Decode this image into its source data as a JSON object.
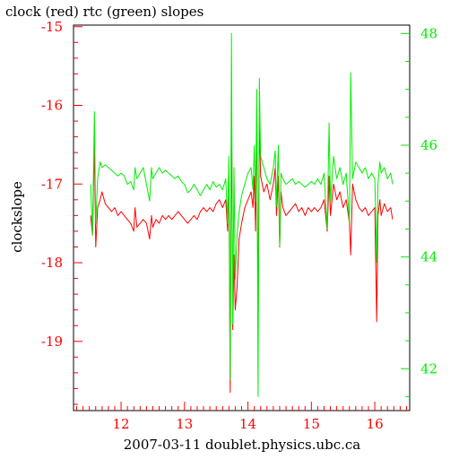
{
  "chart_data": {
    "type": "line",
    "title": "clock (red) rtc (green) slopes",
    "xlabel": "2007-03-11 doublet.physics.ubc.ca",
    "ylabel": "clockslope",
    "xlim": [
      11.25,
      16.55
    ],
    "ylim_left": [
      -19.88,
      -14.98
    ],
    "ylim_right": [
      41.25,
      48.15
    ],
    "grid": false,
    "colors": {
      "clock": "#ff0000",
      "rtc": "#00ee00",
      "axes": "#000000"
    },
    "x_ticks": [
      "12",
      "13",
      "14",
      "15",
      "16"
    ],
    "y_ticks_left": [
      "-15",
      "-16",
      "-17",
      "-18",
      "-19"
    ],
    "y_ticks_right": [
      "48",
      "46",
      "44",
      "42"
    ],
    "series": [
      {
        "name": "clock",
        "axis": "left",
        "color": "#ff0000",
        "points": [
          [
            11.52,
            -17.4
          ],
          [
            11.55,
            -17.65
          ],
          [
            11.58,
            -16.5
          ],
          [
            11.6,
            -17.8
          ],
          [
            11.63,
            -17.3
          ],
          [
            11.67,
            -17.2
          ],
          [
            11.7,
            -17.1
          ],
          [
            11.75,
            -17.25
          ],
          [
            11.8,
            -17.3
          ],
          [
            11.85,
            -17.35
          ],
          [
            11.9,
            -17.3
          ],
          [
            11.95,
            -17.4
          ],
          [
            12.0,
            -17.35
          ],
          [
            12.05,
            -17.4
          ],
          [
            12.1,
            -17.45
          ],
          [
            12.15,
            -17.5
          ],
          [
            12.2,
            -17.6
          ],
          [
            12.22,
            -17.3
          ],
          [
            12.25,
            -17.55
          ],
          [
            12.3,
            -17.5
          ],
          [
            12.35,
            -17.45
          ],
          [
            12.4,
            -17.5
          ],
          [
            12.45,
            -17.7
          ],
          [
            12.48,
            -17.4
          ],
          [
            12.5,
            -17.55
          ],
          [
            12.55,
            -17.45
          ],
          [
            12.6,
            -17.5
          ],
          [
            12.65,
            -17.4
          ],
          [
            12.7,
            -17.45
          ],
          [
            12.75,
            -17.4
          ],
          [
            12.8,
            -17.45
          ],
          [
            12.85,
            -17.4
          ],
          [
            12.9,
            -17.35
          ],
          [
            12.95,
            -17.4
          ],
          [
            13.0,
            -17.45
          ],
          [
            13.05,
            -17.5
          ],
          [
            13.1,
            -17.45
          ],
          [
            13.15,
            -17.4
          ],
          [
            13.2,
            -17.45
          ],
          [
            13.25,
            -17.35
          ],
          [
            13.3,
            -17.3
          ],
          [
            13.35,
            -17.35
          ],
          [
            13.4,
            -17.3
          ],
          [
            13.45,
            -17.35
          ],
          [
            13.5,
            -17.25
          ],
          [
            13.55,
            -17.2
          ],
          [
            13.6,
            -17.3
          ],
          [
            13.65,
            -17.2
          ],
          [
            13.68,
            -17.6
          ],
          [
            13.7,
            -16.9
          ],
          [
            13.72,
            -19.65
          ],
          [
            13.74,
            -15.85
          ],
          [
            13.76,
            -18.85
          ],
          [
            13.78,
            -17.9
          ],
          [
            13.8,
            -18.6
          ],
          [
            13.83,
            -18.3
          ],
          [
            13.86,
            -17.7
          ],
          [
            13.9,
            -17.5
          ],
          [
            13.95,
            -17.3
          ],
          [
            14.0,
            -17.2
          ],
          [
            14.05,
            -17.1
          ],
          [
            14.08,
            -17.3
          ],
          [
            14.1,
            -16.9
          ],
          [
            14.12,
            -17.6
          ],
          [
            14.14,
            -16.0
          ],
          [
            14.16,
            -18.8
          ],
          [
            14.18,
            -16.2
          ],
          [
            14.2,
            -16.9
          ],
          [
            14.25,
            -17.1
          ],
          [
            14.3,
            -17.0
          ],
          [
            14.35,
            -17.2
          ],
          [
            14.4,
            -17.0
          ],
          [
            14.43,
            -16.8
          ],
          [
            14.45,
            -17.4
          ],
          [
            14.48,
            -16.9
          ],
          [
            14.5,
            -17.8
          ],
          [
            14.52,
            -17.1
          ],
          [
            14.55,
            -17.3
          ],
          [
            14.6,
            -17.4
          ],
          [
            14.65,
            -17.35
          ],
          [
            14.7,
            -17.3
          ],
          [
            14.75,
            -17.25
          ],
          [
            14.8,
            -17.35
          ],
          [
            14.85,
            -17.3
          ],
          [
            14.9,
            -17.4
          ],
          [
            14.95,
            -17.3
          ],
          [
            15.0,
            -17.35
          ],
          [
            15.05,
            -17.3
          ],
          [
            15.1,
            -17.35
          ],
          [
            15.15,
            -17.3
          ],
          [
            15.2,
            -17.2
          ],
          [
            15.25,
            -17.6
          ],
          [
            15.28,
            -16.9
          ],
          [
            15.3,
            -17.4
          ],
          [
            15.35,
            -17.0
          ],
          [
            15.4,
            -17.2
          ],
          [
            15.45,
            -17.1
          ],
          [
            15.5,
            -17.3
          ],
          [
            15.55,
            -17.2
          ],
          [
            15.6,
            -17.5
          ],
          [
            15.62,
            -17.9
          ],
          [
            15.65,
            -17.0
          ],
          [
            15.7,
            -17.2
          ],
          [
            15.75,
            -17.3
          ],
          [
            15.8,
            -17.35
          ],
          [
            15.85,
            -17.3
          ],
          [
            15.9,
            -17.4
          ],
          [
            15.95,
            -17.35
          ],
          [
            16.0,
            -17.3
          ],
          [
            16.03,
            -18.75
          ],
          [
            16.05,
            -17.4
          ],
          [
            16.08,
            -17.2
          ],
          [
            16.1,
            -17.4
          ],
          [
            16.15,
            -17.25
          ],
          [
            16.2,
            -17.35
          ],
          [
            16.25,
            -17.3
          ],
          [
            16.28,
            -17.45
          ]
        ]
      },
      {
        "name": "rtc",
        "axis": "right",
        "color": "#00ee00",
        "points": [
          [
            11.52,
            45.3
          ],
          [
            11.55,
            44.4
          ],
          [
            11.58,
            46.6
          ],
          [
            11.6,
            44.6
          ],
          [
            11.63,
            45.4
          ],
          [
            11.67,
            45.7
          ],
          [
            11.7,
            45.6
          ],
          [
            11.75,
            45.65
          ],
          [
            11.8,
            45.6
          ],
          [
            11.85,
            45.55
          ],
          [
            11.9,
            45.5
          ],
          [
            11.95,
            45.45
          ],
          [
            12.0,
            45.5
          ],
          [
            12.05,
            45.45
          ],
          [
            12.1,
            45.3
          ],
          [
            12.15,
            45.35
          ],
          [
            12.2,
            45.2
          ],
          [
            12.22,
            45.6
          ],
          [
            12.25,
            45.4
          ],
          [
            12.3,
            45.5
          ],
          [
            12.35,
            45.6
          ],
          [
            12.4,
            45.3
          ],
          [
            12.45,
            45.0
          ],
          [
            12.48,
            45.6
          ],
          [
            12.5,
            45.4
          ],
          [
            12.55,
            45.5
          ],
          [
            12.6,
            45.6
          ],
          [
            12.65,
            45.5
          ],
          [
            12.7,
            45.55
          ],
          [
            12.75,
            45.5
          ],
          [
            12.8,
            45.45
          ],
          [
            12.85,
            45.4
          ],
          [
            12.9,
            45.45
          ],
          [
            12.95,
            45.35
          ],
          [
            13.0,
            45.3
          ],
          [
            13.05,
            45.15
          ],
          [
            13.1,
            45.2
          ],
          [
            13.15,
            45.3
          ],
          [
            13.2,
            45.2
          ],
          [
            13.25,
            45.1
          ],
          [
            13.3,
            45.2
          ],
          [
            13.35,
            45.3
          ],
          [
            13.4,
            45.2
          ],
          [
            13.45,
            45.35
          ],
          [
            13.5,
            45.25
          ],
          [
            13.55,
            45.3
          ],
          [
            13.6,
            45.2
          ],
          [
            13.65,
            45.4
          ],
          [
            13.68,
            44.6
          ],
          [
            13.7,
            45.8
          ],
          [
            13.72,
            41.8
          ],
          [
            13.74,
            48.0
          ],
          [
            13.76,
            42.8
          ],
          [
            13.78,
            45.6
          ],
          [
            13.8,
            43.6
          ],
          [
            13.83,
            44.4
          ],
          [
            13.86,
            44.8
          ],
          [
            13.9,
            45.1
          ],
          [
            13.95,
            45.3
          ],
          [
            14.0,
            45.5
          ],
          [
            14.05,
            45.6
          ],
          [
            14.08,
            45.2
          ],
          [
            14.1,
            46.0
          ],
          [
            14.12,
            45.0
          ],
          [
            14.14,
            47.0
          ],
          [
            14.16,
            41.5
          ],
          [
            14.18,
            47.2
          ],
          [
            14.2,
            45.8
          ],
          [
            14.25,
            45.6
          ],
          [
            14.3,
            45.4
          ],
          [
            14.35,
            45.3
          ],
          [
            14.4,
            45.6
          ],
          [
            14.43,
            45.9
          ],
          [
            14.45,
            44.9
          ],
          [
            14.48,
            46.0
          ],
          [
            14.5,
            44.2
          ],
          [
            14.52,
            45.5
          ],
          [
            14.55,
            45.4
          ],
          [
            14.6,
            45.3
          ],
          [
            14.65,
            45.35
          ],
          [
            14.7,
            45.4
          ],
          [
            14.75,
            45.3
          ],
          [
            14.8,
            45.35
          ],
          [
            14.85,
            45.3
          ],
          [
            14.9,
            45.25
          ],
          [
            14.95,
            45.3
          ],
          [
            15.0,
            45.35
          ],
          [
            15.05,
            45.3
          ],
          [
            15.1,
            45.4
          ],
          [
            15.15,
            45.3
          ],
          [
            15.2,
            45.5
          ],
          [
            15.25,
            44.5
          ],
          [
            15.28,
            46.4
          ],
          [
            15.3,
            45.0
          ],
          [
            15.35,
            45.8
          ],
          [
            15.4,
            45.4
          ],
          [
            15.45,
            45.6
          ],
          [
            15.5,
            45.3
          ],
          [
            15.55,
            45.5
          ],
          [
            15.6,
            44.6
          ],
          [
            15.62,
            47.3
          ],
          [
            15.65,
            45.4
          ],
          [
            15.7,
            45.7
          ],
          [
            15.75,
            45.6
          ],
          [
            15.8,
            45.5
          ],
          [
            15.85,
            45.6
          ],
          [
            15.9,
            45.4
          ],
          [
            15.95,
            45.5
          ],
          [
            16.0,
            45.4
          ],
          [
            16.03,
            43.9
          ],
          [
            16.05,
            45.3
          ],
          [
            16.08,
            45.7
          ],
          [
            16.1,
            45.5
          ],
          [
            16.15,
            45.6
          ],
          [
            16.2,
            45.4
          ],
          [
            16.25,
            45.5
          ],
          [
            16.28,
            45.3
          ]
        ]
      }
    ]
  }
}
